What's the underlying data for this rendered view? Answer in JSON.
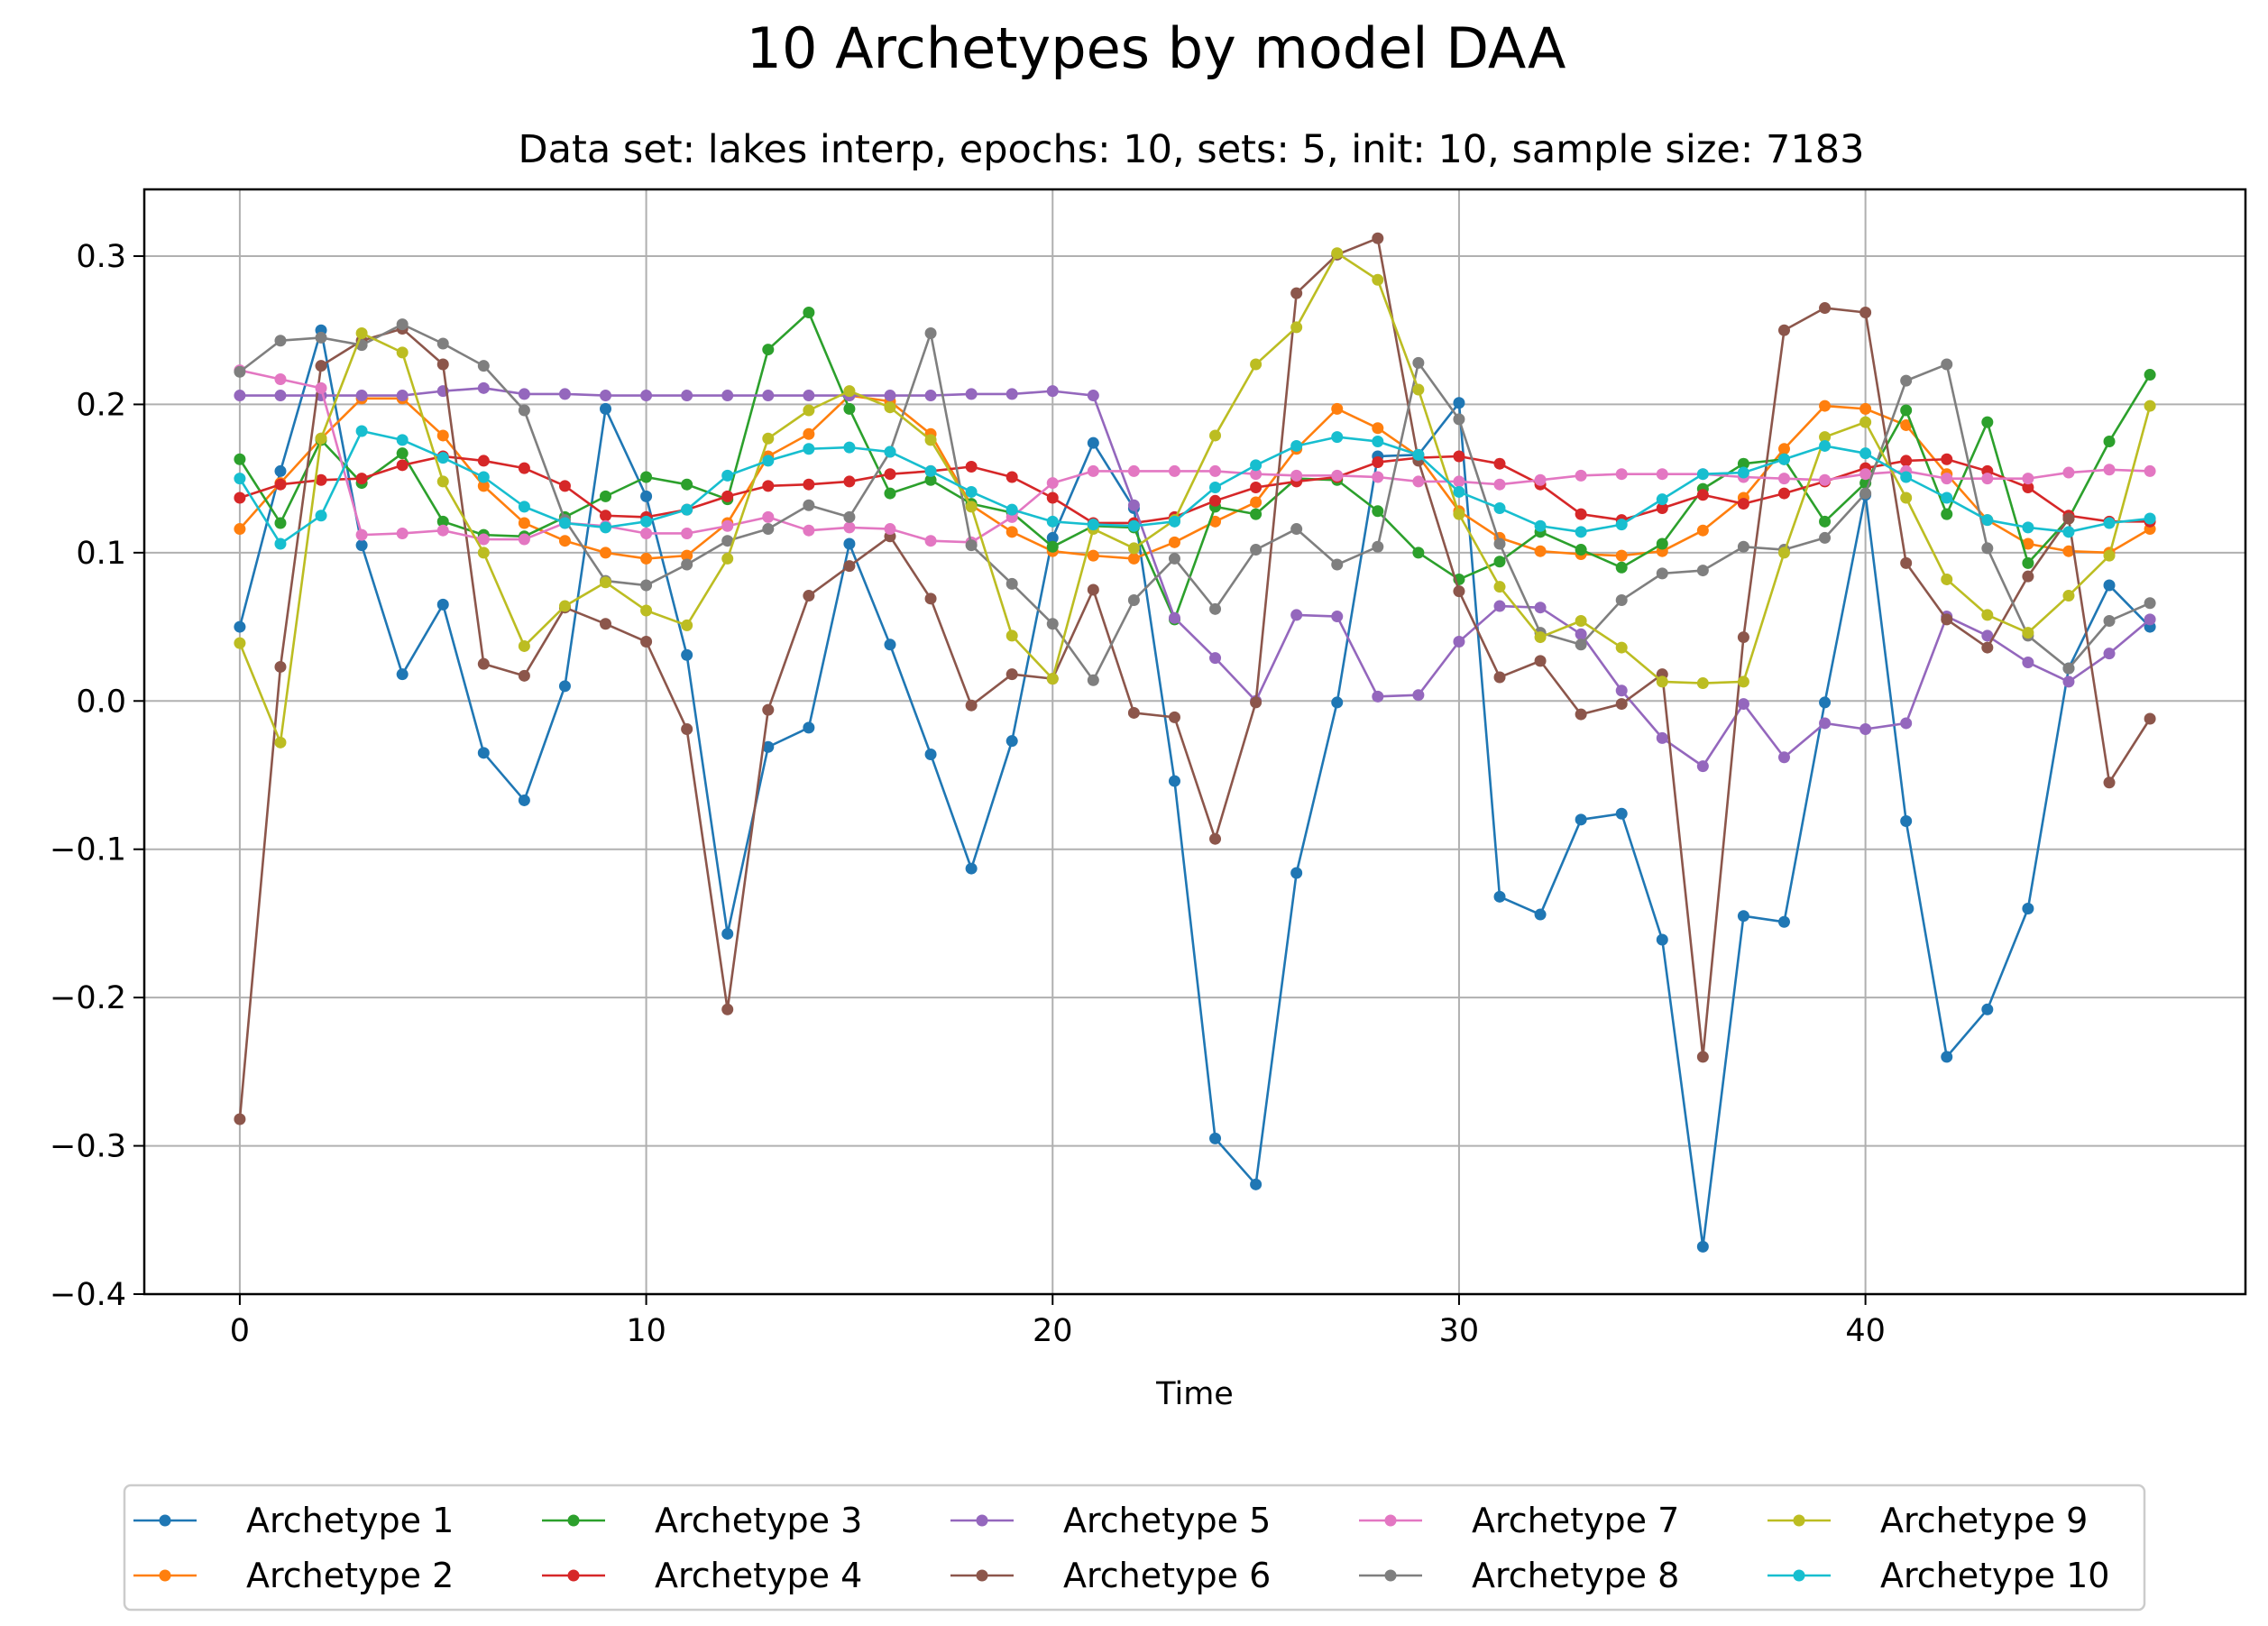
{
  "figure": {
    "title": "10 Archetypes by model DAA",
    "subtitle": "Data set: lakes interp, epochs: 10, sets: 5, init: 10, sample size: 7183"
  },
  "chart_data": {
    "type": "line",
    "title": "10 Archetypes by model DAA",
    "subtitle": "Data set: lakes interp, epochs: 10, sets: 5, init: 10, sample size: 7183",
    "xlabel": "Time",
    "ylabel": "",
    "xlim": [
      -2.35,
      49.35
    ],
    "ylim": [
      -0.4,
      0.345
    ],
    "xticks": [
      0,
      10,
      20,
      30,
      40
    ],
    "xtick_labels": [
      "0",
      "10",
      "20",
      "30",
      "40"
    ],
    "yticks": [
      -0.4,
      -0.3,
      -0.2,
      -0.1,
      0.0,
      0.1,
      0.2,
      0.3
    ],
    "ytick_labels": [
      "−0.4",
      "−0.3",
      "−0.2",
      "−0.1",
      "0.0",
      "0.1",
      "0.2",
      "0.3"
    ],
    "grid": true,
    "legend": {
      "placement": "bottom-center, below axes",
      "columns": 5
    },
    "x": [
      0,
      1,
      2,
      3,
      4,
      5,
      6,
      7,
      8,
      9,
      10,
      11,
      12,
      13,
      14,
      15,
      16,
      17,
      18,
      19,
      20,
      21,
      22,
      23,
      24,
      25,
      26,
      27,
      28,
      29,
      30,
      31,
      32,
      33,
      34,
      35,
      36,
      37,
      38,
      39,
      40,
      41,
      42,
      43,
      44,
      45,
      46,
      47
    ],
    "series": [
      {
        "name": "Archetype 1",
        "color": "#1f77b4",
        "values": [
          0.05,
          0.155,
          0.25,
          0.105,
          0.018,
          0.065,
          -0.035,
          -0.067,
          0.01,
          0.197,
          0.138,
          0.031,
          -0.157,
          -0.031,
          -0.018,
          0.106,
          0.038,
          -0.036,
          -0.113,
          -0.027,
          0.11,
          0.174,
          0.13,
          -0.054,
          -0.295,
          -0.326,
          -0.116,
          -0.001,
          0.165,
          0.166,
          0.201,
          -0.132,
          -0.144,
          -0.08,
          -0.076,
          -0.161,
          -0.368,
          -0.145,
          -0.149,
          -0.001,
          0.139,
          -0.081,
          -0.24,
          -0.208,
          -0.14,
          0.022,
          0.078,
          0.05
        ]
      },
      {
        "name": "Archetype 2",
        "color": "#ff7f0e",
        "values": [
          0.116,
          0.147,
          0.177,
          0.204,
          0.204,
          0.179,
          0.145,
          0.12,
          0.108,
          0.1,
          0.096,
          0.098,
          0.12,
          0.165,
          0.18,
          0.206,
          0.202,
          0.18,
          0.132,
          0.114,
          0.101,
          0.098,
          0.096,
          0.107,
          0.121,
          0.134,
          0.17,
          0.197,
          0.184,
          0.165,
          0.128,
          0.11,
          0.101,
          0.099,
          0.098,
          0.101,
          0.115,
          0.137,
          0.17,
          0.199,
          0.197,
          0.186,
          0.153,
          0.122,
          0.106,
          0.101,
          0.1,
          0.116
        ]
      },
      {
        "name": "Archetype 3",
        "color": "#2ca02c",
        "values": [
          0.163,
          0.12,
          0.176,
          0.147,
          0.167,
          0.121,
          0.112,
          0.111,
          0.124,
          0.138,
          0.151,
          0.146,
          0.136,
          0.237,
          0.262,
          0.197,
          0.14,
          0.149,
          0.133,
          0.127,
          0.104,
          0.118,
          0.117,
          0.055,
          0.131,
          0.126,
          0.15,
          0.149,
          0.128,
          0.1,
          0.082,
          0.094,
          0.114,
          0.102,
          0.09,
          0.106,
          0.143,
          0.16,
          0.163,
          0.121,
          0.147,
          0.196,
          0.126,
          0.188,
          0.093,
          0.123,
          0.175,
          0.22
        ]
      },
      {
        "name": "Archetype 4",
        "color": "#d62728",
        "values": [
          0.137,
          0.146,
          0.149,
          0.15,
          0.159,
          0.165,
          0.162,
          0.157,
          0.145,
          0.125,
          0.124,
          0.129,
          0.138,
          0.145,
          0.146,
          0.148,
          0.153,
          0.155,
          0.158,
          0.151,
          0.137,
          0.12,
          0.12,
          0.124,
          0.135,
          0.144,
          0.148,
          0.151,
          0.161,
          0.164,
          0.165,
          0.16,
          0.146,
          0.126,
          0.122,
          0.13,
          0.139,
          0.133,
          0.14,
          0.148,
          0.157,
          0.162,
          0.163,
          0.155,
          0.144,
          0.125,
          0.121,
          0.121
        ]
      },
      {
        "name": "Archetype 5",
        "color": "#9467bd",
        "values": [
          0.206,
          0.206,
          0.206,
          0.206,
          0.206,
          0.209,
          0.211,
          0.207,
          0.207,
          0.206,
          0.206,
          0.206,
          0.206,
          0.206,
          0.206,
          0.206,
          0.206,
          0.206,
          0.207,
          0.207,
          0.209,
          0.206,
          0.132,
          0.056,
          0.029,
          0.0,
          0.058,
          0.057,
          0.003,
          0.004,
          0.04,
          0.064,
          0.063,
          0.045,
          0.007,
          -0.025,
          -0.044,
          -0.002,
          -0.038,
          -0.015,
          -0.019,
          -0.015,
          0.057,
          0.044,
          0.026,
          0.013,
          0.032,
          0.055
        ]
      },
      {
        "name": "Archetype 6",
        "color": "#8c564b",
        "values": [
          -0.282,
          0.023,
          0.226,
          0.243,
          0.251,
          0.227,
          0.025,
          0.017,
          0.063,
          0.052,
          0.04,
          -0.019,
          -0.208,
          -0.006,
          0.071,
          0.091,
          0.111,
          0.069,
          -0.003,
          0.018,
          0.015,
          0.075,
          -0.008,
          -0.011,
          -0.093,
          -0.001,
          0.275,
          0.301,
          0.312,
          0.162,
          0.074,
          0.016,
          0.027,
          -0.009,
          -0.002,
          0.018,
          -0.24,
          0.043,
          0.25,
          0.265,
          0.262,
          0.093,
          0.055,
          0.036,
          0.084,
          0.123,
          -0.055,
          -0.012
        ]
      },
      {
        "name": "Archetype 7",
        "color": "#e377c2",
        "values": [
          0.223,
          0.217,
          0.211,
          0.112,
          0.113,
          0.115,
          0.109,
          0.109,
          0.12,
          0.118,
          0.113,
          0.113,
          0.118,
          0.124,
          0.115,
          0.117,
          0.116,
          0.108,
          0.107,
          0.124,
          0.147,
          0.155,
          0.155,
          0.155,
          0.155,
          0.153,
          0.152,
          0.152,
          0.151,
          0.148,
          0.148,
          0.146,
          0.149,
          0.152,
          0.153,
          0.153,
          0.153,
          0.151,
          0.15,
          0.149,
          0.153,
          0.155,
          0.15,
          0.15,
          0.15,
          0.154,
          0.156,
          0.155
        ]
      },
      {
        "name": "Archetype 8",
        "color": "#7f7f7f",
        "values": [
          0.222,
          0.243,
          0.245,
          0.24,
          0.254,
          0.241,
          0.226,
          0.196,
          0.122,
          0.081,
          0.078,
          0.092,
          0.108,
          0.116,
          0.132,
          0.124,
          0.168,
          0.248,
          0.105,
          0.079,
          0.052,
          0.014,
          0.068,
          0.096,
          0.062,
          0.102,
          0.116,
          0.092,
          0.104,
          0.228,
          0.19,
          0.106,
          0.046,
          0.038,
          0.068,
          0.086,
          0.088,
          0.104,
          0.102,
          0.11,
          0.14,
          0.216,
          0.227,
          0.103,
          0.044,
          0.022,
          0.054,
          0.066
        ]
      },
      {
        "name": "Archetype 9",
        "color": "#bcbd22",
        "values": [
          0.039,
          -0.028,
          0.177,
          0.248,
          0.235,
          0.148,
          0.1,
          0.037,
          0.064,
          0.08,
          0.061,
          0.051,
          0.096,
          0.177,
          0.196,
          0.209,
          0.198,
          0.176,
          0.131,
          0.044,
          0.015,
          0.116,
          0.103,
          0.122,
          0.179,
          0.227,
          0.252,
          0.302,
          0.284,
          0.21,
          0.126,
          0.077,
          0.043,
          0.054,
          0.036,
          0.013,
          0.012,
          0.013,
          0.1,
          0.178,
          0.188,
          0.137,
          0.082,
          0.058,
          0.046,
          0.071,
          0.098,
          0.199
        ]
      },
      {
        "name": "Archetype 10",
        "color": "#17becf",
        "values": [
          0.15,
          0.106,
          0.125,
          0.182,
          0.176,
          0.164,
          0.151,
          0.131,
          0.12,
          0.117,
          0.121,
          0.129,
          0.152,
          0.162,
          0.17,
          0.171,
          0.168,
          0.155,
          0.141,
          0.129,
          0.121,
          0.119,
          0.118,
          0.121,
          0.144,
          0.159,
          0.172,
          0.178,
          0.175,
          0.166,
          0.141,
          0.13,
          0.118,
          0.114,
          0.119,
          0.136,
          0.153,
          0.154,
          0.163,
          0.172,
          0.167,
          0.151,
          0.137,
          0.122,
          0.117,
          0.114,
          0.12,
          0.123
        ]
      }
    ]
  }
}
